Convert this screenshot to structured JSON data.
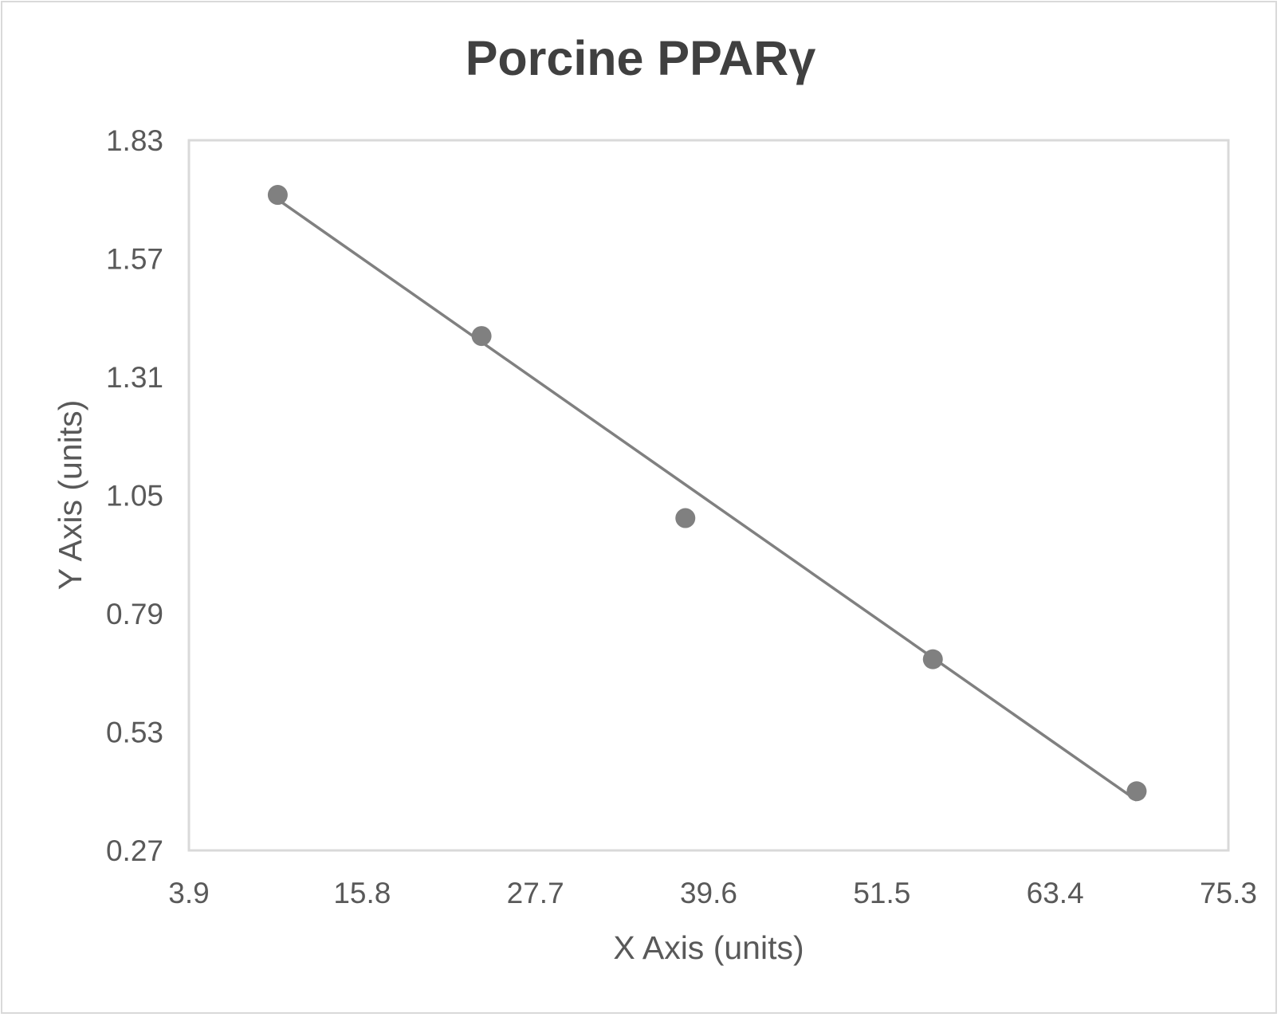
{
  "chart": {
    "title": "Porcine PPARγ",
    "xlabel": "X Axis (units)",
    "ylabel": "Y Axis (units)",
    "x_ticks": [
      "3.9",
      "15.8",
      "27.7",
      "39.6",
      "51.5",
      "63.4",
      "75.3"
    ],
    "y_ticks": [
      "1.83",
      "1.57",
      "1.31",
      "1.05",
      "0.79",
      "0.53",
      "0.27"
    ],
    "colors": {
      "marker": "#808080",
      "trendline": "#808080",
      "plot_border": "#d9d9d9",
      "text": "#595959",
      "title": "#404040"
    }
  },
  "chart_data": {
    "type": "scatter",
    "title": "Porcine PPARγ",
    "xlabel": "X Axis (units)",
    "ylabel": "Y Axis (units)",
    "xlim": [
      3.9,
      75.3
    ],
    "ylim": [
      0.27,
      1.83
    ],
    "x_ticks": [
      3.9,
      15.8,
      27.7,
      39.6,
      51.5,
      63.4,
      75.3
    ],
    "y_ticks": [
      0.27,
      0.53,
      0.79,
      1.05,
      1.31,
      1.57,
      1.83
    ],
    "grid": false,
    "legend": null,
    "series": [
      {
        "name": "Porcine PPARγ",
        "x": [
          10,
          24,
          38,
          55,
          69
        ],
        "y": [
          1.71,
          1.4,
          1.0,
          0.69,
          0.4
        ]
      }
    ],
    "trendline": {
      "type": "linear",
      "x_start": 10,
      "y_start": 1.7,
      "x_end": 69,
      "y_end": 0.38
    }
  }
}
